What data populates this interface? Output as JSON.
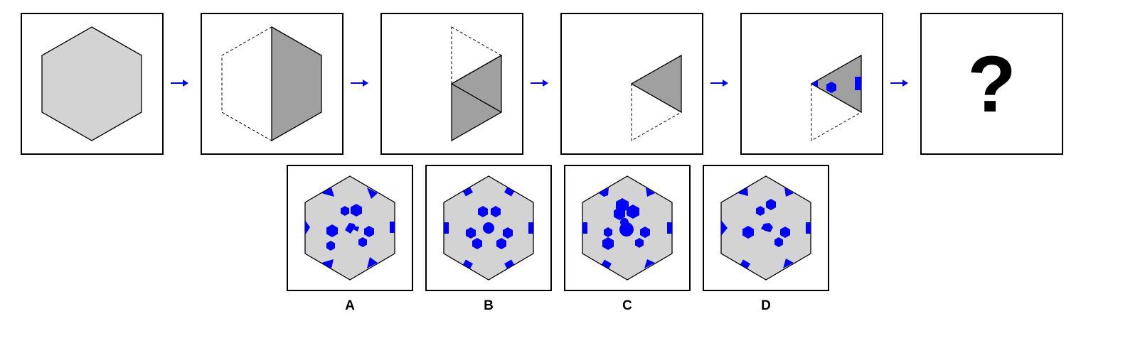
{
  "sequence": {
    "panel_count": 6,
    "question_label": "?",
    "colors": {
      "light_gray": "#d3d3d3",
      "dark_gray": "#a0a0a0",
      "accent": "#0000ff",
      "border": "#000000"
    }
  },
  "options": {
    "labels": [
      "A",
      "B",
      "C",
      "D"
    ]
  }
}
